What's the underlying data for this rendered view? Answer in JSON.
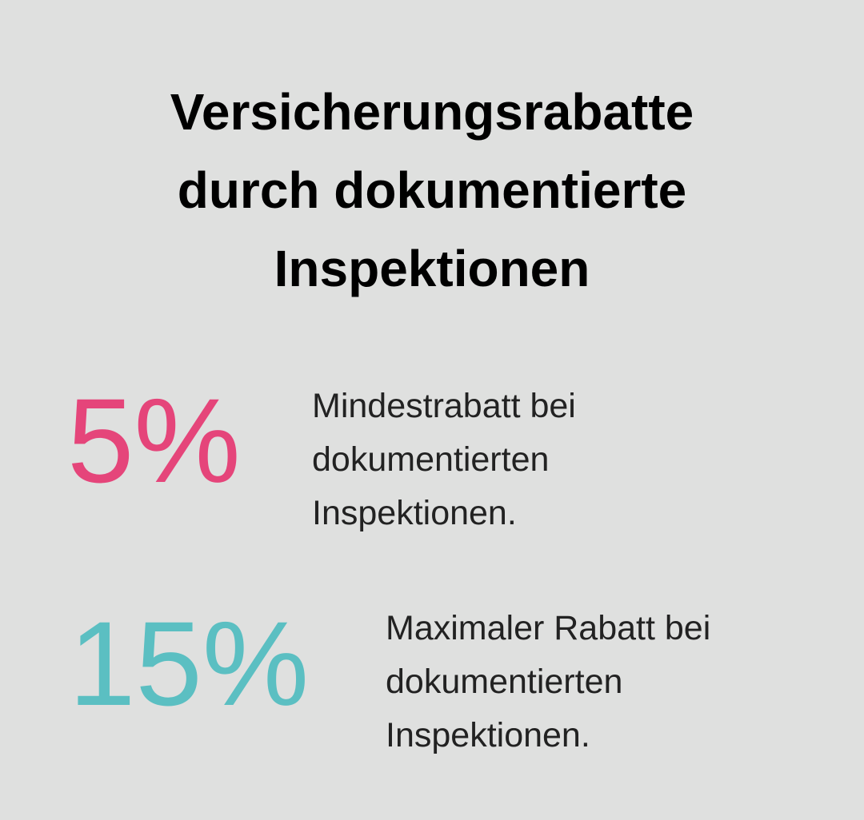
{
  "title_lines": [
    "Versicherungsrabatte",
    "durch dokumentierte",
    "Inspektionen"
  ],
  "stats": [
    {
      "value": "5%",
      "description_lines": [
        "Mindestrabatt bei",
        "dokumentierten",
        "Inspektionen."
      ]
    },
    {
      "value": "15%",
      "description_lines": [
        "Maximaler Rabatt bei",
        "dokumentierten",
        "Inspektionen."
      ]
    }
  ]
}
